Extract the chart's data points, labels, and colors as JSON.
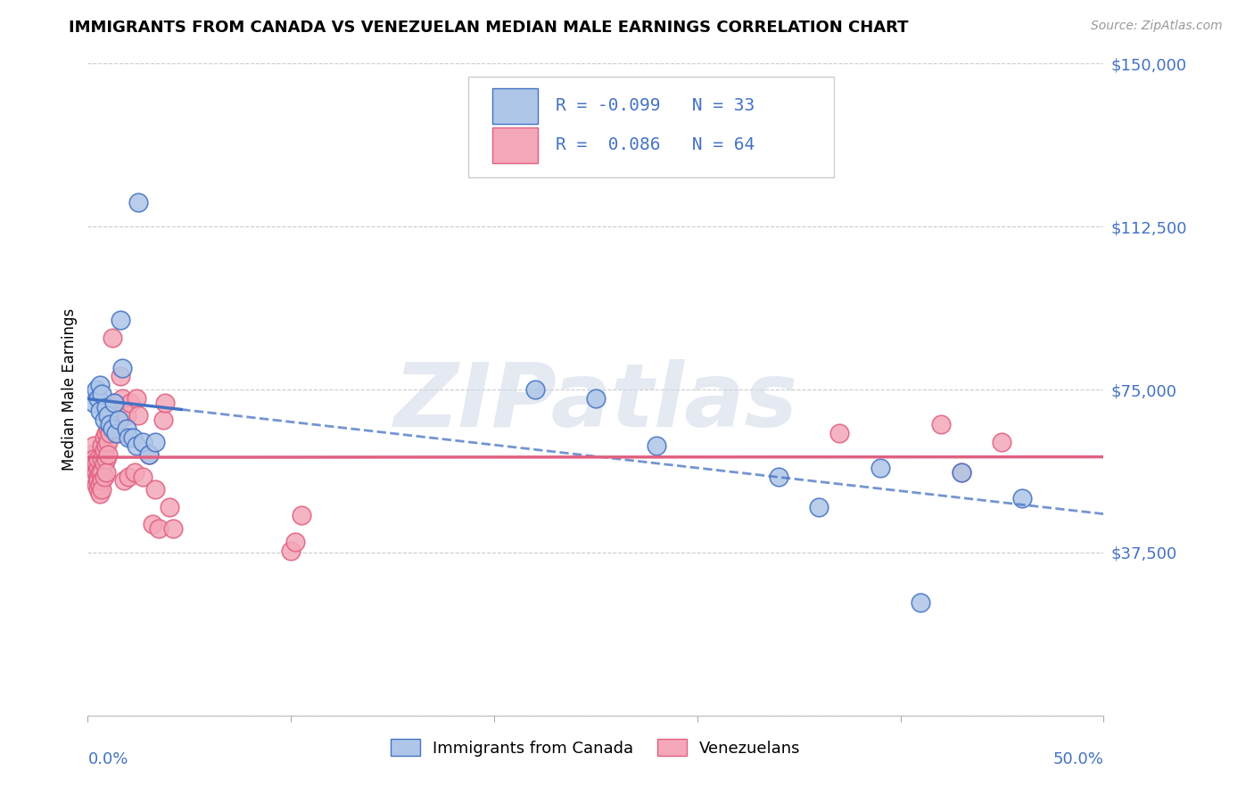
{
  "title": "IMMIGRANTS FROM CANADA VS VENEZUELAN MEDIAN MALE EARNINGS CORRELATION CHART",
  "source": "Source: ZipAtlas.com",
  "ylabel": "Median Male Earnings",
  "yticks": [
    0,
    37500,
    75000,
    112500,
    150000
  ],
  "ytick_labels": [
    "",
    "$37,500",
    "$75,000",
    "$112,500",
    "$150,000"
  ],
  "xlim": [
    0.0,
    0.5
  ],
  "ylim": [
    0,
    150000
  ],
  "legend_label1": "Immigrants from Canada",
  "legend_label2": "Venezuelans",
  "color_blue": "#AEC6E8",
  "color_pink": "#F4A7B9",
  "line_blue": "#4472C4",
  "line_pink": "#E06080",
  "watermark": "ZIPatlas",
  "canada_x": [
    0.003,
    0.004,
    0.005,
    0.006,
    0.006,
    0.007,
    0.008,
    0.009,
    0.01,
    0.011,
    0.012,
    0.013,
    0.014,
    0.015,
    0.016,
    0.017,
    0.019,
    0.02,
    0.022,
    0.024,
    0.025,
    0.027,
    0.03,
    0.033,
    0.22,
    0.25,
    0.28,
    0.34,
    0.36,
    0.39,
    0.41,
    0.43,
    0.46
  ],
  "canada_y": [
    72000,
    75000,
    73000,
    76000,
    70000,
    74000,
    68000,
    71000,
    69000,
    67000,
    66000,
    72000,
    65000,
    68000,
    91000,
    80000,
    66000,
    64000,
    64000,
    62000,
    118000,
    63000,
    60000,
    63000,
    75000,
    73000,
    62000,
    55000,
    48000,
    57000,
    26000,
    56000,
    50000
  ],
  "venezuela_x": [
    0.002,
    0.002,
    0.003,
    0.003,
    0.003,
    0.004,
    0.004,
    0.004,
    0.005,
    0.005,
    0.005,
    0.005,
    0.005,
    0.006,
    0.006,
    0.006,
    0.007,
    0.007,
    0.007,
    0.007,
    0.007,
    0.008,
    0.008,
    0.008,
    0.008,
    0.009,
    0.009,
    0.009,
    0.009,
    0.01,
    0.01,
    0.01,
    0.011,
    0.011,
    0.012,
    0.012,
    0.013,
    0.014,
    0.015,
    0.016,
    0.017,
    0.018,
    0.019,
    0.02,
    0.021,
    0.023,
    0.024,
    0.025,
    0.027,
    0.03,
    0.032,
    0.033,
    0.035,
    0.037,
    0.038,
    0.04,
    0.042,
    0.1,
    0.102,
    0.105,
    0.37,
    0.42,
    0.43,
    0.45
  ],
  "venezuela_y": [
    60000,
    57000,
    62000,
    59000,
    55000,
    56000,
    53000,
    58000,
    57000,
    55000,
    54000,
    52000,
    59000,
    56000,
    53000,
    51000,
    62000,
    59000,
    56000,
    54000,
    52000,
    64000,
    61000,
    58000,
    55000,
    65000,
    62000,
    59000,
    56000,
    66000,
    63000,
    60000,
    68000,
    65000,
    70000,
    87000,
    72000,
    68000,
    65000,
    78000,
    73000,
    54000,
    69000,
    55000,
    72000,
    56000,
    73000,
    69000,
    55000,
    60000,
    44000,
    52000,
    43000,
    68000,
    72000,
    48000,
    43000,
    38000,
    40000,
    46000,
    65000,
    67000,
    56000,
    63000
  ]
}
